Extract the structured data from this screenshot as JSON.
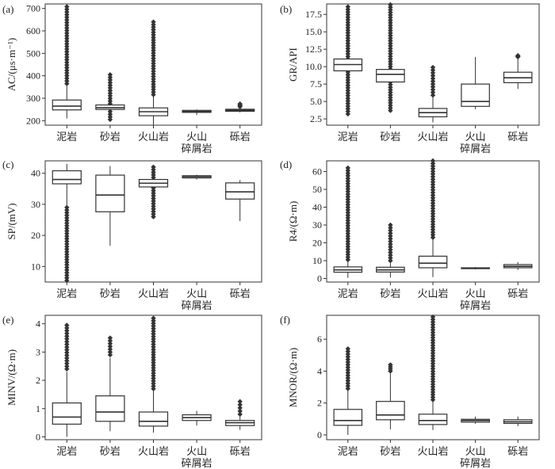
{
  "chart_data": [
    {
      "panel": "(a)",
      "type": "box",
      "ylabel": "AC/(μs·m⁻¹)",
      "ylim": [
        180,
        720
      ],
      "yticks": [
        200,
        300,
        400,
        500,
        600,
        700
      ],
      "categories": [
        [
          "泥岩"
        ],
        [
          "砂岩"
        ],
        [
          "火山岩"
        ],
        [
          "火山",
          "碎屑岩"
        ],
        [
          "砾岩"
        ]
      ],
      "boxes": [
        {
          "min": 210,
          "q1": 248,
          "median": 265,
          "q3": 292,
          "max": 362,
          "outliers_range": [
            365,
            708
          ]
        },
        {
          "min": 220,
          "q1": 250,
          "median": 258,
          "q3": 270,
          "max": 300,
          "outliers_range": [
            205,
            405
          ]
        },
        {
          "min": 182,
          "q1": 222,
          "median": 240,
          "q3": 257,
          "max": 312,
          "outliers_range": [
            316,
            640
          ]
        },
        {
          "min": 225,
          "q1": 237,
          "median": 241,
          "q3": 246,
          "max": 250,
          "outliers_range": null
        },
        {
          "min": 237,
          "q1": 242,
          "median": 246,
          "q3": 251,
          "max": 258,
          "outliers_range": [
            262,
            275
          ]
        }
      ]
    },
    {
      "panel": "(b)",
      "type": "box",
      "ylabel": "GR/API",
      "ylim": [
        1.6,
        19
      ],
      "yticks": [
        2.5,
        5.0,
        7.5,
        10.0,
        12.5,
        15.0,
        17.5
      ],
      "categories": [
        [
          "泥岩"
        ],
        [
          "砂岩"
        ],
        [
          "火山岩"
        ],
        [
          "火山",
          "碎屑岩"
        ],
        [
          "砾岩"
        ]
      ],
      "boxes": [
        {
          "min": 6.8,
          "q1": 9.4,
          "median": 10.3,
          "q3": 11.1,
          "max": 13.8,
          "outliers_range": [
            3.2,
            18.6
          ]
        },
        {
          "min": 5.0,
          "q1": 7.8,
          "median": 8.9,
          "q3": 9.6,
          "max": 12.5,
          "outliers_range": [
            3.7,
            18.9
          ]
        },
        {
          "min": 2.0,
          "q1": 2.8,
          "median": 3.4,
          "q3": 4.0,
          "max": 5.6,
          "outliers_range": [
            5.9,
            9.9
          ]
        },
        {
          "min": 3.9,
          "q1": 4.3,
          "median": 5.0,
          "q3": 7.5,
          "max": 11.4,
          "outliers_range": null
        },
        {
          "min": 6.8,
          "q1": 7.7,
          "median": 8.4,
          "q3": 9.2,
          "max": 11.4,
          "outliers_range": [
            11.4,
            11.6
          ]
        }
      ]
    },
    {
      "panel": "(c)",
      "type": "box",
      "ylabel": "SP/(mV)",
      "ylim": [
        5,
        44
      ],
      "yticks": [
        10,
        20,
        30,
        40
      ],
      "categories": [
        [
          "泥岩"
        ],
        [
          "砂岩"
        ],
        [
          "火山岩"
        ],
        [
          "火山",
          "碎屑岩"
        ],
        [
          "砾岩"
        ]
      ],
      "boxes": [
        {
          "min": 29.5,
          "q1": 36.6,
          "median": 38.0,
          "q3": 40.8,
          "max": 43.0,
          "outliers_range": [
            5.5,
            29.0
          ]
        },
        {
          "min": 16.7,
          "q1": 27.6,
          "median": 33.0,
          "q3": 39.4,
          "max": 42.3,
          "outliers_range": null
        },
        {
          "min": 32.5,
          "q1": 35.6,
          "median": 36.8,
          "q3": 38.0,
          "max": 40.0,
          "outliers_range": [
            26.0,
            42.0
          ]
        },
        {
          "min": 38.0,
          "q1": 38.5,
          "median": 38.9,
          "q3": 39.2,
          "max": 39.5,
          "outliers_range": null
        },
        {
          "min": 24.6,
          "q1": 31.7,
          "median": 34.0,
          "q3": 36.9,
          "max": 37.8,
          "outliers_range": null
        }
      ]
    },
    {
      "panel": "(d)",
      "type": "box",
      "ylabel": "R4/(Ω·m)",
      "ylim": [
        -2,
        66
      ],
      "yticks": [
        0,
        10,
        20,
        30,
        40,
        50,
        60
      ],
      "categories": [
        [
          "泥岩"
        ],
        [
          "砂岩"
        ],
        [
          "火山岩"
        ],
        [
          "火山",
          "碎屑岩"
        ],
        [
          "砾岩"
        ]
      ],
      "boxes": [
        {
          "min": 0.3,
          "q1": 3.5,
          "median": 4.8,
          "q3": 6.5,
          "max": 10.0,
          "outliers_range": [
            10.5,
            62.0
          ]
        },
        {
          "min": 0.5,
          "q1": 3.6,
          "median": 4.8,
          "q3": 6.3,
          "max": 9.5,
          "outliers_range": [
            10.0,
            30.0
          ]
        },
        {
          "min": 0.8,
          "q1": 6.0,
          "median": 8.6,
          "q3": 12.5,
          "max": 22.5,
          "outliers_range": [
            23.0,
            66.0
          ]
        },
        {
          "min": 5.2,
          "q1": 5.5,
          "median": 5.8,
          "q3": 6.0,
          "max": 6.4,
          "outliers_range": null
        },
        {
          "min": 4.8,
          "q1": 6.0,
          "median": 6.8,
          "q3": 7.8,
          "max": 9.2,
          "outliers_range": null
        }
      ]
    },
    {
      "panel": "(e)",
      "type": "box",
      "ylabel": "MINV/(Ω·m)",
      "ylim": [
        -0.1,
        4.3
      ],
      "yticks": [
        0,
        1,
        2,
        3,
        4
      ],
      "categories": [
        [
          "泥岩"
        ],
        [
          "砂岩"
        ],
        [
          "火山岩"
        ],
        [
          "火山",
          "碎屑岩"
        ],
        [
          "砾岩"
        ]
      ],
      "boxes": [
        {
          "min": 0.0,
          "q1": 0.45,
          "median": 0.7,
          "q3": 1.2,
          "max": 2.3,
          "outliers_range": [
            2.4,
            3.95
          ]
        },
        {
          "min": 0.2,
          "q1": 0.55,
          "median": 0.88,
          "q3": 1.45,
          "max": 2.8,
          "outliers_range": [
            2.9,
            3.5
          ]
        },
        {
          "min": 0.15,
          "q1": 0.38,
          "median": 0.55,
          "q3": 0.88,
          "max": 1.65,
          "outliers_range": [
            1.7,
            4.2
          ]
        },
        {
          "min": 0.4,
          "q1": 0.58,
          "median": 0.68,
          "q3": 0.78,
          "max": 0.92,
          "outliers_range": null
        },
        {
          "min": 0.25,
          "q1": 0.4,
          "median": 0.5,
          "q3": 0.58,
          "max": 0.75,
          "outliers_range": [
            0.8,
            1.25
          ]
        }
      ]
    },
    {
      "panel": "(f)",
      "type": "box",
      "ylabel": "MNOR/(Ω·m)",
      "ylim": [
        -0.3,
        7.5
      ],
      "yticks": [
        0,
        2,
        4,
        6
      ],
      "categories": [
        [
          "泥岩"
        ],
        [
          "砂岩"
        ],
        [
          "火山岩"
        ],
        [
          "火山",
          "碎屑岩"
        ],
        [
          "砾岩"
        ]
      ],
      "boxes": [
        {
          "min": 0.0,
          "q1": 0.6,
          "median": 0.9,
          "q3": 1.6,
          "max": 2.8,
          "outliers_range": [
            2.9,
            5.4
          ]
        },
        {
          "min": 0.35,
          "q1": 0.95,
          "median": 1.25,
          "q3": 2.1,
          "max": 3.9,
          "outliers_range": [
            4.0,
            4.4
          ]
        },
        {
          "min": 0.3,
          "q1": 0.65,
          "median": 0.9,
          "q3": 1.3,
          "max": 2.1,
          "outliers_range": [
            2.2,
            7.4
          ]
        },
        {
          "min": 0.7,
          "q1": 0.8,
          "median": 0.9,
          "q3": 0.98,
          "max": 1.15,
          "outliers_range": null
        },
        {
          "min": 0.55,
          "q1": 0.72,
          "median": 0.82,
          "q3": 0.95,
          "max": 1.15,
          "outliers_range": null
        }
      ]
    }
  ]
}
